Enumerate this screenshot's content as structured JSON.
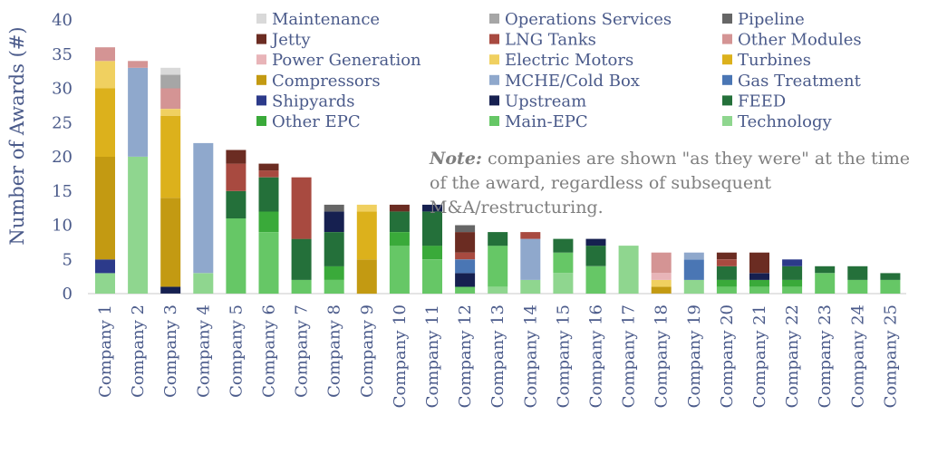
{
  "chart_data": {
    "type": "bar",
    "stacked": true,
    "ylabel": "Number of Awards (#)",
    "ylim": [
      0,
      40
    ],
    "yticks": [
      0,
      5,
      10,
      15,
      20,
      25,
      30,
      35,
      40
    ],
    "categories": [
      "Company 1",
      "Company 2",
      "Company 3",
      "Company 4",
      "Company 5",
      "Company 6",
      "Company 7",
      "Company 8",
      "Company 9",
      "Company 10",
      "Company 11",
      "Company 12",
      "Company 13",
      "Company 14",
      "Company 15",
      "Company 16",
      "Company 17",
      "Company 18",
      "Company 19",
      "Company 20",
      "Company 21",
      "Company 22",
      "Company 23",
      "Company 24",
      "Company 25"
    ],
    "series": [
      {
        "name": "Technology",
        "color": "#8fd68f",
        "values": [
          3,
          20,
          0,
          3,
          0,
          0,
          0,
          0,
          0,
          0,
          0,
          0,
          1,
          2,
          3,
          0,
          7,
          0,
          2,
          0,
          0,
          0,
          0,
          0,
          0
        ]
      },
      {
        "name": "Main-EPC",
        "color": "#66c766",
        "values": [
          0,
          0,
          0,
          0,
          11,
          9,
          2,
          2,
          0,
          7,
          5,
          1,
          6,
          0,
          3,
          4,
          0,
          0,
          0,
          1,
          1,
          1,
          3,
          2,
          2
        ]
      },
      {
        "name": "Other EPC",
        "color": "#3aaa3a",
        "values": [
          0,
          0,
          0,
          0,
          0,
          3,
          0,
          2,
          0,
          2,
          2,
          0,
          0,
          0,
          0,
          0,
          0,
          0,
          0,
          1,
          1,
          1,
          0,
          0,
          0
        ]
      },
      {
        "name": "FEED",
        "color": "#24703a",
        "values": [
          0,
          0,
          0,
          0,
          4,
          5,
          6,
          5,
          0,
          3,
          5,
          0,
          2,
          0,
          2,
          3,
          0,
          0,
          0,
          2,
          0,
          2,
          1,
          2,
          1
        ]
      },
      {
        "name": "Upstream",
        "color": "#162050",
        "values": [
          0,
          0,
          1,
          0,
          0,
          0,
          0,
          3,
          0,
          0,
          1,
          2,
          0,
          0,
          0,
          1,
          0,
          0,
          0,
          0,
          1,
          0,
          0,
          0,
          0
        ]
      },
      {
        "name": "Shipyards",
        "color": "#2c3a8a",
        "values": [
          2,
          0,
          0,
          0,
          0,
          0,
          0,
          0,
          0,
          0,
          0,
          0,
          0,
          0,
          0,
          0,
          0,
          0,
          0,
          0,
          0,
          1,
          0,
          0,
          0
        ]
      },
      {
        "name": "Gas Treatment",
        "color": "#4a76b4",
        "values": [
          0,
          0,
          0,
          0,
          0,
          0,
          0,
          0,
          0,
          0,
          0,
          2,
          0,
          0,
          0,
          0,
          0,
          0,
          3,
          0,
          0,
          0,
          0,
          0,
          0
        ]
      },
      {
        "name": "MCHE/Cold Box",
        "color": "#8fa8cc",
        "values": [
          0,
          13,
          0,
          19,
          0,
          0,
          0,
          0,
          0,
          0,
          0,
          0,
          0,
          6,
          0,
          0,
          0,
          0,
          1,
          0,
          0,
          0,
          0,
          0,
          0
        ]
      },
      {
        "name": "Compressors",
        "color": "#c39a12",
        "values": [
          15,
          0,
          13,
          0,
          0,
          0,
          0,
          0,
          5,
          0,
          0,
          0,
          0,
          0,
          0,
          0,
          0,
          1,
          0,
          0,
          0,
          0,
          0,
          0,
          0
        ]
      },
      {
        "name": "Turbines",
        "color": "#dcb11c",
        "values": [
          10,
          0,
          12,
          0,
          0,
          0,
          0,
          0,
          7,
          0,
          0,
          0,
          0,
          0,
          0,
          0,
          0,
          0,
          0,
          0,
          0,
          0,
          0,
          0,
          0
        ]
      },
      {
        "name": "Electric Motors",
        "color": "#f0d060",
        "values": [
          4,
          0,
          1,
          0,
          0,
          0,
          0,
          0,
          1,
          0,
          0,
          0,
          0,
          0,
          0,
          0,
          0,
          1,
          0,
          0,
          0,
          0,
          0,
          0,
          0
        ]
      },
      {
        "name": "Power Generation",
        "color": "#e8b4b8",
        "values": [
          0,
          0,
          0,
          0,
          0,
          0,
          0,
          0,
          0,
          0,
          0,
          0,
          0,
          0,
          0,
          0,
          0,
          1,
          0,
          0,
          0,
          0,
          0,
          0,
          0
        ]
      },
      {
        "name": "Other Modules",
        "color": "#d49494",
        "values": [
          2,
          1,
          3,
          0,
          0,
          0,
          0,
          0,
          0,
          0,
          0,
          0,
          0,
          0,
          0,
          0,
          0,
          3,
          0,
          0,
          0,
          0,
          0,
          0,
          0
        ]
      },
      {
        "name": "LNG Tanks",
        "color": "#a84a40",
        "values": [
          0,
          0,
          0,
          0,
          4,
          1,
          9,
          0,
          0,
          0,
          0,
          1,
          0,
          1,
          0,
          0,
          0,
          0,
          0,
          1,
          0,
          0,
          0,
          0,
          0
        ]
      },
      {
        "name": "Jetty",
        "color": "#6b2c22",
        "values": [
          0,
          0,
          0,
          0,
          2,
          1,
          0,
          0,
          0,
          1,
          0,
          3,
          0,
          0,
          0,
          0,
          0,
          0,
          0,
          1,
          3,
          0,
          0,
          0,
          0
        ]
      },
      {
        "name": "Pipeline",
        "color": "#666666",
        "values": [
          0,
          0,
          0,
          0,
          0,
          0,
          0,
          1,
          0,
          0,
          0,
          1,
          0,
          0,
          0,
          0,
          0,
          0,
          0,
          0,
          0,
          0,
          0,
          0,
          0
        ]
      },
      {
        "name": "Operations Services",
        "color": "#a6a6a6",
        "values": [
          0,
          0,
          2,
          0,
          0,
          0,
          0,
          0,
          0,
          0,
          0,
          0,
          0,
          0,
          0,
          0,
          0,
          0,
          0,
          0,
          0,
          0,
          0,
          0,
          0
        ]
      },
      {
        "name": "Maintenance",
        "color": "#d9d9d9",
        "values": [
          0,
          0,
          1,
          0,
          0,
          0,
          0,
          0,
          0,
          0,
          0,
          0,
          0,
          0,
          0,
          0,
          0,
          0,
          0,
          0,
          0,
          0,
          0,
          0,
          0
        ]
      }
    ],
    "legend_order": [
      "Maintenance",
      "Operations Services",
      "Pipeline",
      "Jetty",
      "LNG Tanks",
      "Other Modules",
      "Power Generation",
      "Electric Motors",
      "Turbines",
      "Compressors",
      "MCHE/Cold Box",
      "Gas Treatment",
      "Shipyards",
      "Upstream",
      "FEED",
      "Other EPC",
      "Main-EPC",
      "Technology"
    ],
    "legend_position": "top-right",
    "grid": false
  },
  "note": {
    "label": "Note:",
    "text": " companies are shown \"as they were\" at the time of the award, regardless of subsequent M&A/restructuring."
  }
}
